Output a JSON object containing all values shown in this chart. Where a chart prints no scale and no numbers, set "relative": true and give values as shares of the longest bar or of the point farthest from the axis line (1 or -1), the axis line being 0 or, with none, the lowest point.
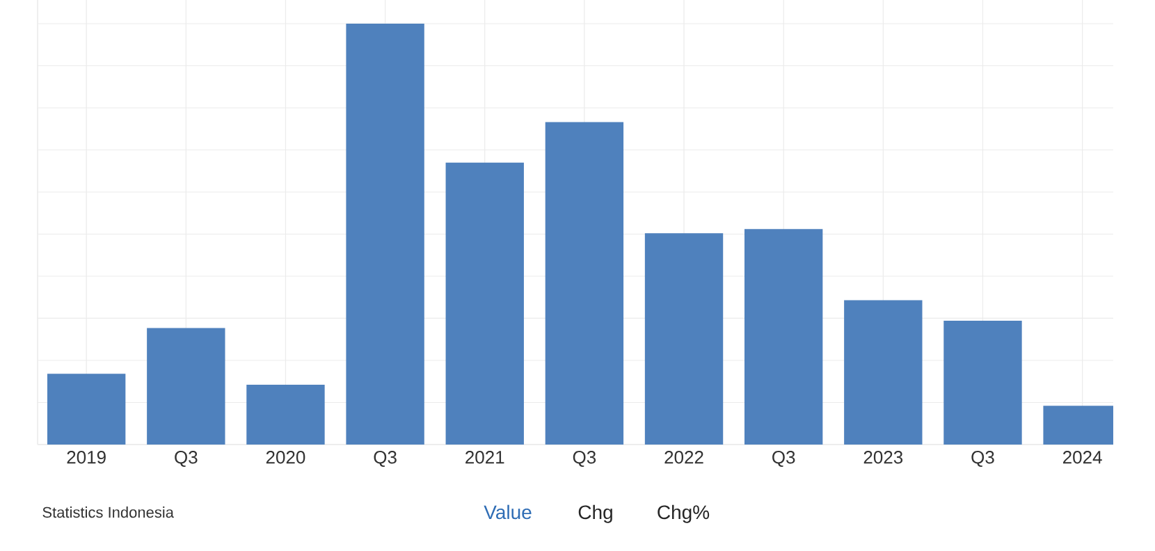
{
  "chart_data": {
    "type": "bar",
    "relative": true,
    "categories": [
      "2019",
      "Q3",
      "2020",
      "Q3",
      "2021",
      "Q3",
      "2022",
      "Q3",
      "2023",
      "Q3",
      "2024"
    ],
    "values": [
      0.168,
      0.277,
      0.142,
      1,
      0.67,
      0.766,
      0.502,
      0.512,
      0.343,
      0.294,
      0.092
    ],
    "color": "#4f81bd",
    "grid": true,
    "annotations": [
      "Statistics Indonesia",
      "Value",
      "Chg",
      "Chg%"
    ]
  }
}
